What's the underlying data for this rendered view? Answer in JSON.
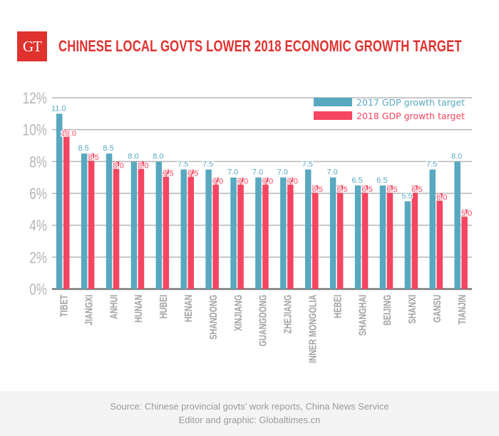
{
  "header": {
    "logo_text": "GT",
    "title": "CHINESE LOCAL GOVTS LOWER 2018 ECONOMIC GROWTH TARGET"
  },
  "colors": {
    "brand": "#e0322f",
    "series_2017": "#58a8c0",
    "series_2018": "#f54560",
    "grid": "#b5b5b5",
    "axis": "#777777"
  },
  "chart_data": {
    "type": "bar",
    "title": "CHINESE LOCAL GOVTS LOWER 2018 ECONOMIC GROWTH TARGET",
    "xlabel": "",
    "ylabel": "",
    "ylim": [
      0,
      12
    ],
    "yticks": [
      0,
      2,
      4,
      6,
      8,
      10,
      12
    ],
    "ytick_labels": [
      "0%",
      "2%",
      "4%",
      "6%",
      "8%",
      "10%",
      "12%"
    ],
    "grid": true,
    "legend_position": "top-right",
    "categories": [
      "TIBET",
      "JIANGXI",
      "ANHUI",
      "HUNAN",
      "HUBEI",
      "HENAN",
      "SHANDONG",
      "XINJIANG",
      "GUANGDONG",
      "ZHEJIANG",
      "INNER MONGOLIA",
      "HEBEI",
      "SHANGHAI",
      "BEIJING",
      "SHANXI",
      "GANSU",
      "TIANJIN"
    ],
    "series": [
      {
        "name": "2017 GDP growth target",
        "color": "#58a8c0",
        "values": [
          11.0,
          8.5,
          8.5,
          8.0,
          8.0,
          7.5,
          7.5,
          7.0,
          7.0,
          7.0,
          7.5,
          7.0,
          6.5,
          6.5,
          5.5,
          7.5,
          8.0
        ]
      },
      {
        "name": "2018 GDP growth target",
        "color": "#f54560",
        "values": [
          10.0,
          8.5,
          8.0,
          8.0,
          7.5,
          7.5,
          7.0,
          7.0,
          7.0,
          7.0,
          6.5,
          6.5,
          6.5,
          6.5,
          6.5,
          6.0,
          5.0
        ]
      }
    ]
  },
  "footer": {
    "source": "Source: Chinese provincial govts’ work reports, China News Service",
    "credit": "Editor and graphic: Globaltimes.cn"
  }
}
